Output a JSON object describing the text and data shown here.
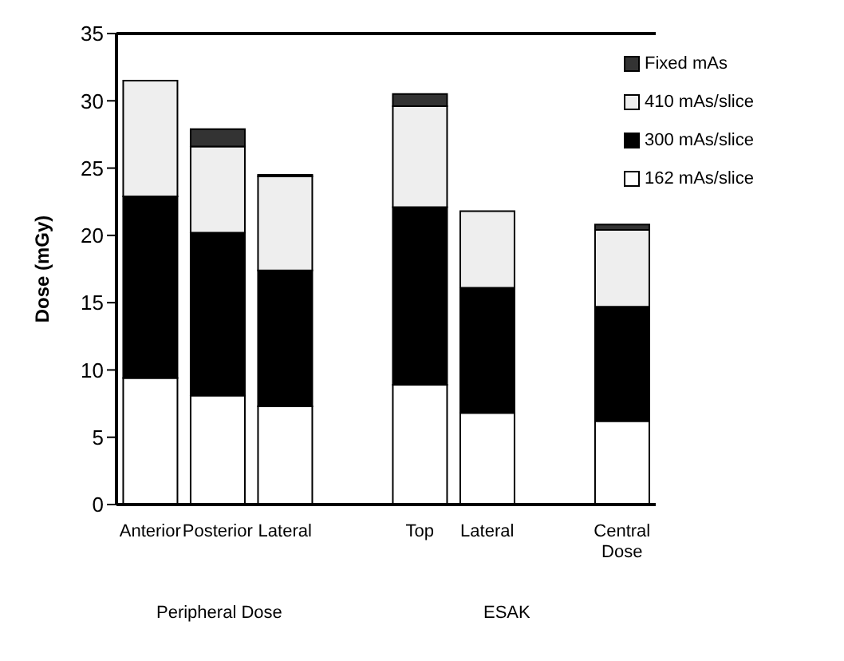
{
  "chart_data": {
    "type": "bar",
    "stacked": true,
    "ylabel": "Dose (mGy)",
    "categories": [
      "Anterior",
      "Posterior",
      "Lateral",
      null,
      "Top",
      "Lateral",
      null,
      "Central Dose"
    ],
    "series": [
      {
        "name": "162 mAs/slice",
        "color": "#ffffff",
        "values": [
          9.4,
          8.1,
          7.3,
          null,
          8.9,
          6.8,
          null,
          6.2
        ]
      },
      {
        "name": "300 mAs/slice",
        "color": "#000000",
        "values": [
          13.5,
          12.1,
          10.1,
          null,
          13.2,
          9.3,
          null,
          8.5
        ]
      },
      {
        "name": "410 mAs/slice",
        "color": "#eeeeee",
        "values": [
          8.6,
          6.4,
          7.0,
          null,
          7.5,
          5.7,
          null,
          5.7
        ]
      },
      {
        "name": "Fixed mAs",
        "color": "#333333",
        "values": [
          0,
          1.3,
          0.1,
          null,
          0.9,
          0,
          null,
          0.4
        ]
      }
    ],
    "ylim": [
      0,
      35
    ],
    "yticks": [
      0,
      5,
      10,
      15,
      20,
      25,
      30,
      35
    ],
    "grid": false,
    "legend": "top right",
    "annotations": [
      "Peripheral Dose",
      "ESAK"
    ]
  }
}
